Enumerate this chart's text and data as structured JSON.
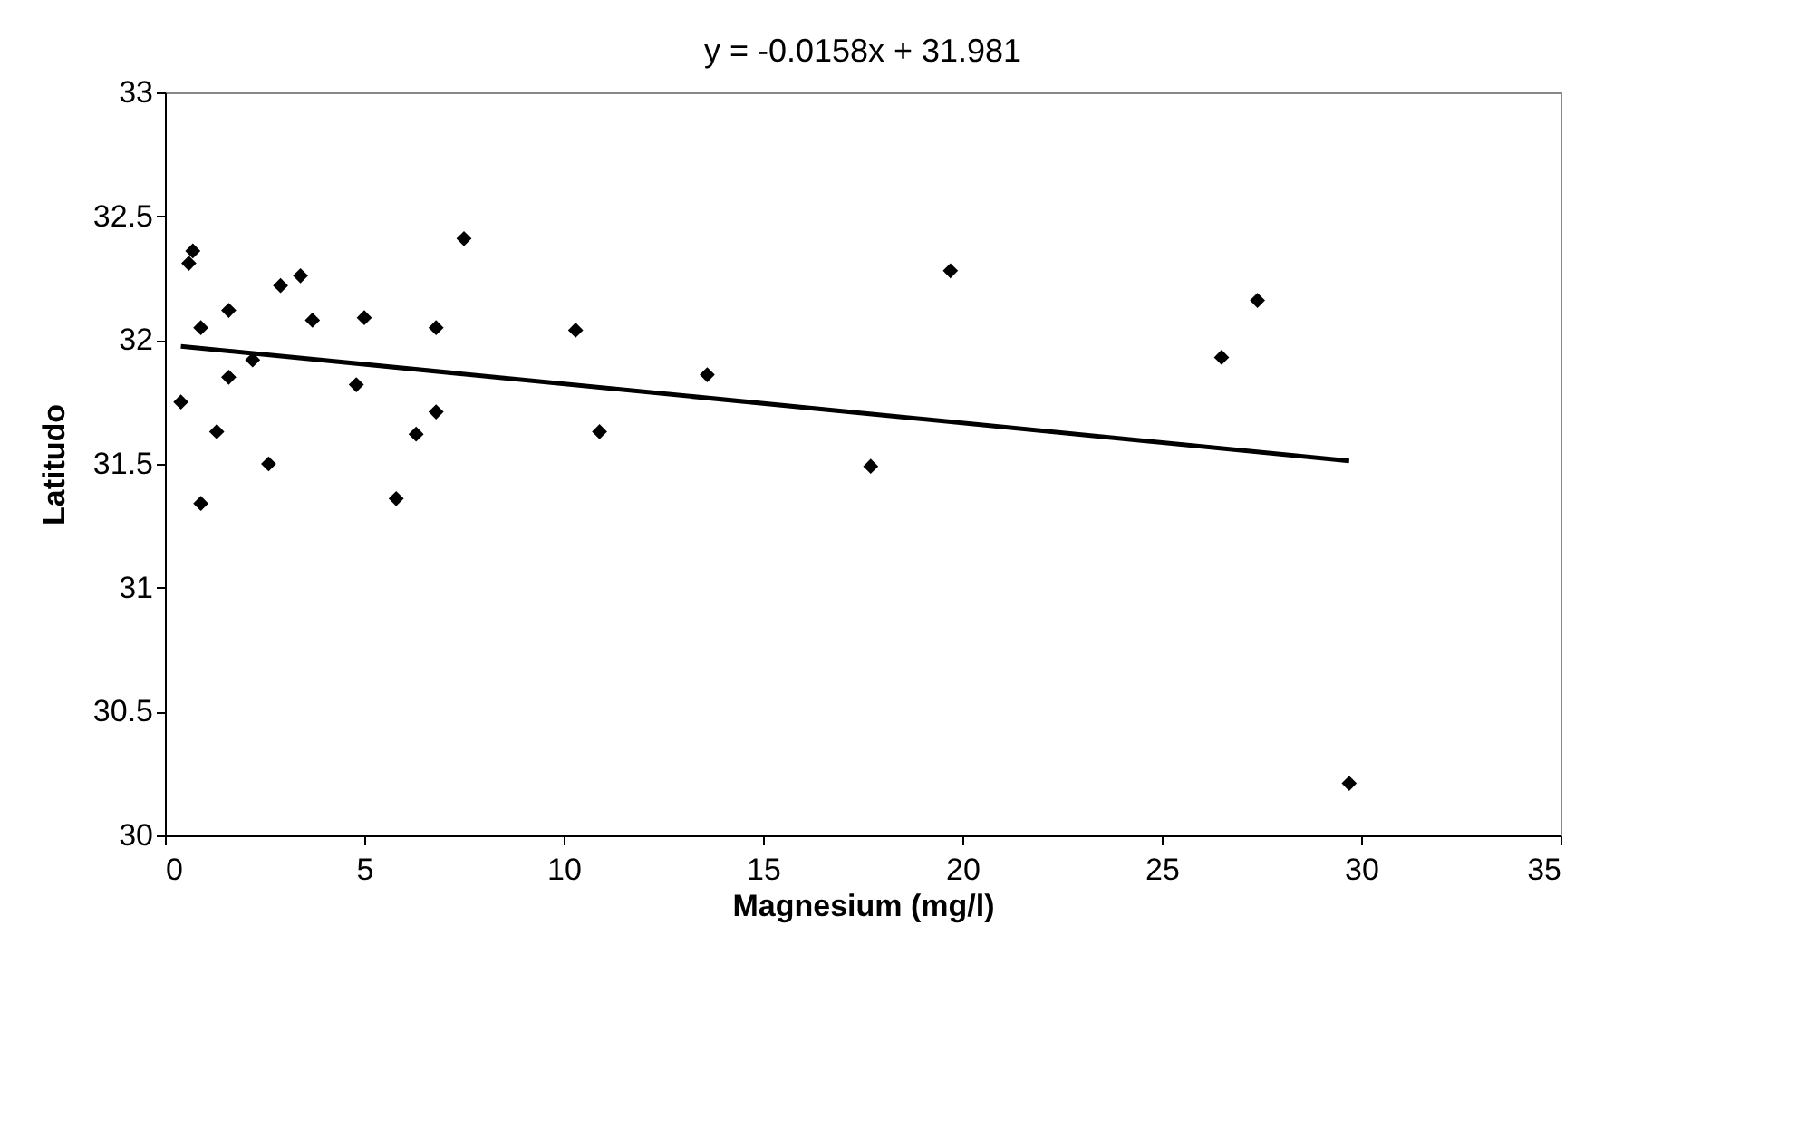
{
  "chart_data": {
    "type": "scatter",
    "title": "y = -0.0158x + 31.981",
    "xlabel": "Magnesium (mg/l)",
    "ylabel": "Latitudo",
    "xlim": [
      0,
      35
    ],
    "xticks": [
      0,
      5,
      10,
      15,
      20,
      25,
      30,
      35
    ],
    "ylim": [
      30,
      33
    ],
    "yticks": [
      30,
      30.5,
      31,
      31.5,
      32,
      32.5,
      33
    ],
    "grid": false,
    "series": [
      {
        "marker": "diamond",
        "color": "#000000",
        "x": [
          0.7,
          0.6,
          7.5,
          2.9,
          3.4,
          1.6,
          0.9,
          3.7,
          5.0,
          6.8,
          2.2,
          1.6,
          0.4,
          4.8,
          1.3,
          6.8,
          6.3,
          2.6,
          0.9,
          5.8,
          10.3,
          10.9,
          13.6,
          17.7,
          19.7,
          26.5,
          27.4,
          29.7
        ],
        "values": [
          32.36,
          32.31,
          32.41,
          32.22,
          32.26,
          32.12,
          32.05,
          32.08,
          32.09,
          32.05,
          31.92,
          31.85,
          31.75,
          31.82,
          31.63,
          31.71,
          31.62,
          31.5,
          31.34,
          31.36,
          32.04,
          31.63,
          31.86,
          31.49,
          32.28,
          31.93,
          32.16,
          30.21
        ]
      },
      {
        "type": "line",
        "marker": "none",
        "line_style": "solid",
        "color": "#000000",
        "x": [
          0.4,
          29.7
        ],
        "values": [
          31.975,
          31.512
        ]
      }
    ]
  }
}
